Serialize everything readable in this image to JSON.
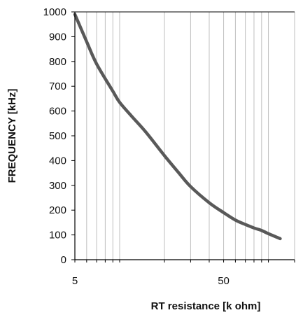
{
  "chart_data": {
    "type": "line",
    "title": "",
    "xlabel": "RT resistance  [k ohm]",
    "ylabel": "FREQUENCY [kHz]",
    "x_scale": "log",
    "xlim": [
      5,
      150
    ],
    "ylim": [
      0,
      1000
    ],
    "y_ticks": [
      0,
      100,
      200,
      300,
      400,
      500,
      600,
      700,
      800,
      900,
      1000
    ],
    "x_tick_labels": [
      {
        "value": 5,
        "label": "5"
      },
      {
        "value": 50,
        "label": "50"
      }
    ],
    "x_grid": [
      5,
      6,
      7,
      8,
      9,
      10,
      20,
      30,
      40,
      50,
      60,
      70,
      80,
      90,
      100,
      150
    ],
    "grid": "vertical",
    "legend": "none",
    "series": [
      {
        "x": [
          5,
          6,
          7,
          9,
          10,
          12,
          15,
          20,
          25,
          30,
          40,
          50,
          60,
          70,
          80,
          90,
          100,
          120
        ],
        "y": [
          990,
          880,
          790,
          680,
          635,
          580,
          515,
          420,
          350,
          295,
          230,
          190,
          160,
          142,
          128,
          118,
          105,
          85
        ],
        "color": "#595959"
      }
    ]
  }
}
